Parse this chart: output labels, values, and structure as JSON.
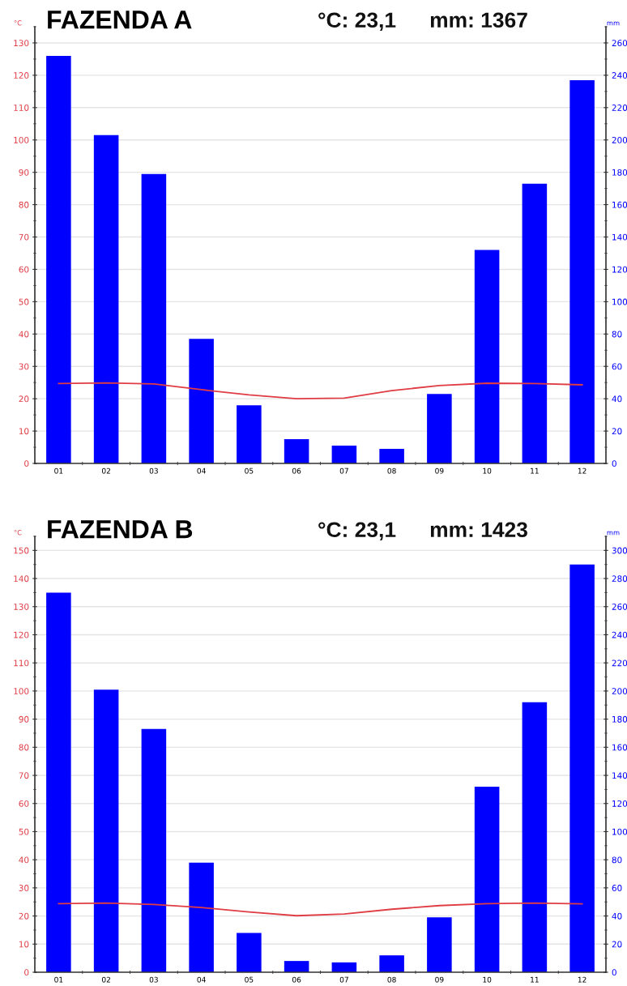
{
  "chart_data": [
    {
      "type": "bar",
      "title": "FAZENDA A",
      "annotations": [
        "°C: 23,1",
        "mm: 1367"
      ],
      "ylabel": "°C",
      "y2label": "mm",
      "categories": [
        "01",
        "02",
        "03",
        "04",
        "05",
        "06",
        "07",
        "08",
        "09",
        "10",
        "11",
        "12"
      ],
      "series": [
        {
          "axis": "y2",
          "color": "#0000ff",
          "values": [
            252,
            203,
            179,
            77,
            36,
            15,
            11,
            9,
            43,
            132,
            173,
            237
          ]
        },
        {
          "type": "line",
          "color": "#e03c44",
          "values": [
            24.7,
            24.9,
            24.6,
            22.8,
            21.2,
            20.0,
            20.2,
            22.5,
            24.1,
            24.8,
            24.7,
            24.3
          ]
        }
      ],
      "ylim": [
        0,
        135
      ],
      "yticks": [
        0,
        10,
        20,
        30,
        40,
        50,
        60,
        70,
        80,
        90,
        100,
        110,
        120,
        130
      ],
      "y2lim": [
        0,
        270
      ],
      "y2ticks": [
        0,
        20,
        40,
        60,
        80,
        100,
        120,
        140,
        160,
        180,
        200,
        220,
        240,
        260
      ],
      "grid": "y"
    },
    {
      "type": "bar",
      "title": "FAZENDA B",
      "annotations": [
        "°C: 23,1",
        "mm: 1423"
      ],
      "ylabel": "°C",
      "y2label": "mm",
      "categories": [
        "01",
        "02",
        "03",
        "04",
        "05",
        "06",
        "07",
        "08",
        "09",
        "10",
        "11",
        "12"
      ],
      "series": [
        {
          "axis": "y2",
          "color": "#0000ff",
          "values": [
            270,
            201,
            173,
            78,
            28,
            8,
            7,
            12,
            39,
            132,
            192,
            290
          ]
        },
        {
          "type": "line",
          "color": "#e03c44",
          "values": [
            24.4,
            24.6,
            24.1,
            23.0,
            21.4,
            20.1,
            20.7,
            22.4,
            23.7,
            24.4,
            24.6,
            24.3
          ]
        }
      ],
      "ylim": [
        0,
        155
      ],
      "yticks": [
        0,
        10,
        20,
        30,
        40,
        50,
        60,
        70,
        80,
        90,
        100,
        110,
        120,
        130,
        140,
        150
      ],
      "y2lim": [
        0,
        310
      ],
      "y2ticks": [
        0,
        20,
        40,
        60,
        80,
        100,
        120,
        140,
        160,
        180,
        200,
        220,
        240,
        260,
        280,
        300
      ],
      "grid": "y"
    }
  ]
}
